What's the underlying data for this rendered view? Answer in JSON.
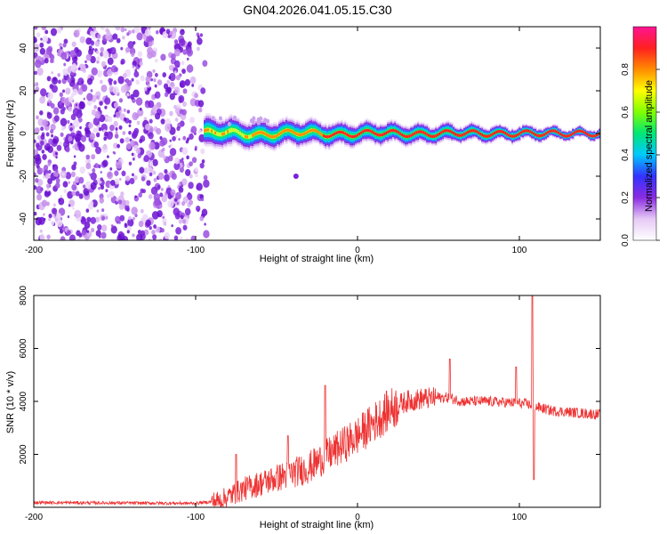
{
  "title": "GN04.2026.041.05.15.C30",
  "chart_data": [
    {
      "type": "heatmap",
      "xlabel": "Height of straight line (km)",
      "ylabel": "Frequency (Hz)",
      "xlim": [
        -200,
        150
      ],
      "ylim": [
        -50,
        50
      ],
      "xticks": [
        -200,
        -100,
        0,
        100
      ],
      "yticks": [
        -40,
        -20,
        0,
        20,
        40
      ],
      "noise_region": {
        "x_start": -200,
        "x_end": -93
      },
      "band_start": -95,
      "band_center_hz": 0,
      "colorbar": {
        "label": "Normalized spectral amplitude",
        "ticks": [
          0.0,
          0.2,
          0.4,
          0.6,
          0.8
        ],
        "range": [
          0,
          1
        ]
      },
      "colormap": [
        "#ffffff",
        "#e6c9f5",
        "#8a2be2",
        "#3333ff",
        "#00c8ff",
        "#00e676",
        "#7fff00",
        "#ffff00",
        "#ff8c00",
        "#ff2020",
        "#ff1493"
      ]
    },
    {
      "type": "line",
      "xlabel": "Height of straight line (km)",
      "ylabel": "SNR (10 * v/v)",
      "xlim": [
        -200,
        150
      ],
      "ylim": [
        0,
        8000
      ],
      "xticks": [
        -200,
        -100,
        0,
        100
      ],
      "yticks": [
        2000,
        4000,
        6000,
        8000
      ],
      "line_color": "#ee3333",
      "trend": {
        "x": [
          -200,
          -100,
          -85,
          -70,
          -50,
          -30,
          -20,
          -10,
          0,
          10,
          20,
          30,
          40,
          55,
          65,
          80,
          95,
          105,
          110,
          120,
          150
        ],
        "y": [
          180,
          150,
          250,
          700,
          1100,
          1500,
          1900,
          2300,
          2700,
          3200,
          3700,
          4000,
          4100,
          4150,
          4000,
          4000,
          3950,
          3900,
          3800,
          3650,
          3500
        ]
      },
      "spikes": [
        {
          "x": -75,
          "y": 2000
        },
        {
          "x": -43,
          "y": 2700
        },
        {
          "x": -20,
          "y": 4600
        },
        {
          "x": 57,
          "y": 5600
        },
        {
          "x": 98,
          "y": 5300
        },
        {
          "x": 108,
          "y": 8000
        },
        {
          "x": 109,
          "y": 1050
        }
      ]
    }
  ]
}
